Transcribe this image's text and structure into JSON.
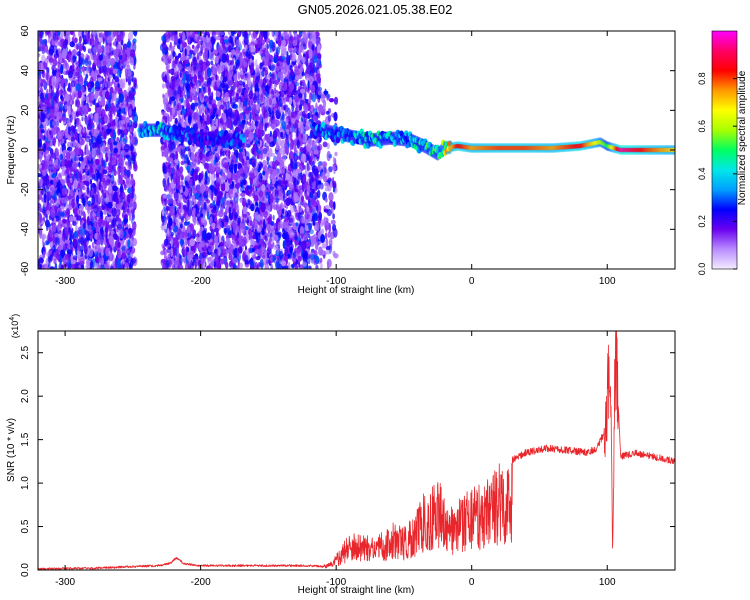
{
  "figure_title": "GN05.2026.021.05.38.E02",
  "chart_data": [
    {
      "type": "heatmap",
      "title": "GN05.2026.021.05.38.E02",
      "xlabel": "Height of straight line (km)",
      "ylabel": "Frequency (Hz)",
      "xlim": [
        -320,
        150
      ],
      "ylim": [
        -60,
        60
      ],
      "xticks": [
        -300,
        -200,
        -100,
        0,
        100
      ],
      "xtick_labels": [
        "-300",
        "-200",
        "-100",
        "0",
        "100"
      ],
      "yticks": [
        60,
        40,
        20,
        0,
        -20,
        -40,
        -60
      ],
      "ytick_labels": [
        "60",
        "40",
        "20",
        "0",
        "-20",
        "-40",
        "-60"
      ],
      "colorbar": {
        "label": "Normalized spectral amplitude",
        "range": [
          0,
          1
        ],
        "ticks": [
          0.0,
          0.2,
          0.4,
          0.6,
          0.8
        ],
        "tick_labels": [
          "0.0",
          "0.2",
          "0.4",
          "0.6",
          "0.8"
        ],
        "colors": [
          "#f4ecff",
          "#b98cff",
          "#6a00f0",
          "#0000ff",
          "#00a0ff",
          "#00e8e8",
          "#00ff60",
          "#a8ff00",
          "#ffff00",
          "#ff9900",
          "#ff0000",
          "#ff0066",
          "#ff00ff"
        ]
      },
      "noise_segments": [
        {
          "x_range": [
            -320,
            -248
          ],
          "freq_range": [
            -60,
            60
          ],
          "density": "high"
        },
        {
          "x_range": [
            -228,
            -112
          ],
          "freq_range": [
            -60,
            60
          ],
          "density": "high"
        },
        {
          "x_range": [
            -112,
            -100
          ],
          "freq_range": [
            -60,
            30
          ],
          "density": "low"
        }
      ],
      "signal_ridge": [
        {
          "x": -245,
          "freq": 10,
          "amp": 0.35
        },
        {
          "x": -230,
          "freq": 10,
          "amp": 0.4
        },
        {
          "x": -215,
          "freq": 8,
          "amp": 0.35
        },
        {
          "x": -200,
          "freq": 6,
          "amp": 0.25
        },
        {
          "x": -175,
          "freq": 5,
          "amp": 0.3
        },
        {
          "x": -110,
          "freq": 10,
          "amp": 0.35
        },
        {
          "x": -90,
          "freq": 7,
          "amp": 0.35
        },
        {
          "x": -75,
          "freq": 5,
          "amp": 0.45
        },
        {
          "x": -60,
          "freq": 6,
          "amp": 0.4
        },
        {
          "x": -45,
          "freq": 5,
          "amp": 0.4
        },
        {
          "x": -35,
          "freq": 2,
          "amp": 0.45
        },
        {
          "x": -25,
          "freq": -2,
          "amp": 0.5
        },
        {
          "x": -20,
          "freq": 1,
          "amp": 0.6
        },
        {
          "x": -10,
          "freq": 2,
          "amp": 0.85
        },
        {
          "x": 0,
          "freq": 1,
          "amp": 0.75
        },
        {
          "x": 20,
          "freq": 1,
          "amp": 0.8
        },
        {
          "x": 40,
          "freq": 1,
          "amp": 0.8
        },
        {
          "x": 60,
          "freq": 1,
          "amp": 0.75
        },
        {
          "x": 80,
          "freq": 2,
          "amp": 0.85
        },
        {
          "x": 95,
          "freq": 4,
          "amp": 0.6
        },
        {
          "x": 100,
          "freq": 2,
          "amp": 0.5
        },
        {
          "x": 110,
          "freq": 0,
          "amp": 0.95
        },
        {
          "x": 130,
          "freq": 0,
          "amp": 0.8
        },
        {
          "x": 150,
          "freq": 0,
          "amp": 0.7
        }
      ]
    },
    {
      "type": "line",
      "xlabel": "Height of straight line (km)",
      "ylabel": "SNR (10 * v/v)",
      "y_multiplier_label": "(x10",
      "y_multiplier_exponent": "4",
      "y_multiplier_close": ")",
      "xlim": [
        -320,
        150
      ],
      "ylim": [
        0,
        2.75
      ],
      "xticks": [
        -300,
        -200,
        -100,
        0,
        100
      ],
      "xtick_labels": [
        "-300",
        "-200",
        "-100",
        "0",
        "100"
      ],
      "yticks": [
        0.0,
        0.5,
        1.0,
        1.5,
        2.0,
        2.5
      ],
      "ytick_labels": [
        "0.0",
        "0.5",
        "1.0",
        "1.5",
        "2.0",
        "2.5"
      ],
      "series": [
        {
          "name": "SNR",
          "color": "#e8262b",
          "x": [
            -320,
            -300,
            -280,
            -250,
            -230,
            -222,
            -218,
            -212,
            -200,
            -180,
            -150,
            -120,
            -110,
            -103,
            -98,
            -92,
            -85,
            -75,
            -65,
            -58,
            -50,
            -42,
            -36,
            -30,
            -24,
            -18,
            -12,
            -6,
            0,
            8,
            18,
            28,
            40,
            55,
            70,
            85,
            92,
            97,
            100,
            102,
            104,
            106,
            110,
            120,
            135,
            150
          ],
          "y": [
            0.01,
            0.02,
            0.02,
            0.04,
            0.05,
            0.08,
            0.14,
            0.07,
            0.05,
            0.05,
            0.05,
            0.05,
            0.04,
            0.1,
            0.2,
            0.35,
            0.4,
            0.35,
            0.4,
            0.5,
            0.45,
            0.6,
            0.8,
            0.85,
            1.0,
            0.65,
            0.7,
            0.8,
            0.85,
            0.95,
            1.1,
            1.25,
            1.35,
            1.4,
            1.38,
            1.35,
            1.4,
            1.55,
            1.8,
            2.75,
            0.15,
            2.6,
            1.3,
            1.35,
            1.3,
            1.25
          ]
        }
      ]
    }
  ]
}
